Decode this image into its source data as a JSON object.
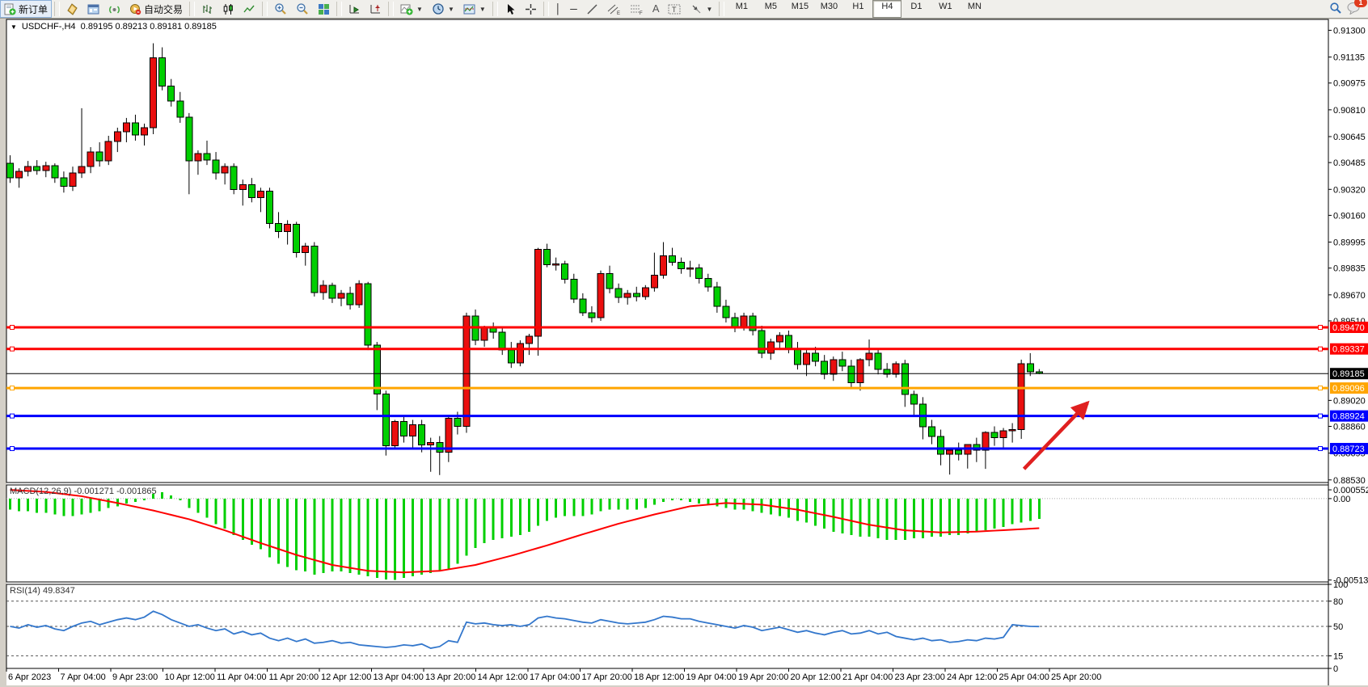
{
  "toolbar": {
    "new_order_label": "新订单",
    "auto_trading_label": "自动交易",
    "timeframes": [
      "M1",
      "M5",
      "M15",
      "M30",
      "H1",
      "H4",
      "D1",
      "W1",
      "MN"
    ],
    "active_timeframe": "H4",
    "notification_count": "1"
  },
  "chart_title": {
    "symbol_period": "USDCHF-,H4",
    "ohlc_text": "0.89195 0.89213 0.89181 0.89185"
  },
  "chart_data": {
    "type": "candlestick",
    "symbol": "USDCHF-",
    "period": "H4",
    "title_ohlc": {
      "open": "0.89195",
      "high": "0.89213",
      "low": "0.89181",
      "close": "0.89185"
    },
    "price_axis": {
      "visible_min": 0.88514,
      "visible_max": 0.91367,
      "ticks": [
        "0.91300",
        "0.91135",
        "0.90975",
        "0.90810",
        "0.90645",
        "0.90485",
        "0.90320",
        "0.90160",
        "0.89995",
        "0.89835",
        "0.89670",
        "0.89510",
        "0.89020",
        "0.88860",
        "0.88695",
        "0.88530"
      ]
    },
    "time_labels": [
      "6 Apr 2023",
      "7 Apr 04:00",
      "9 Apr 23:00",
      "10 Apr 12:00",
      "11 Apr 04:00",
      "11 Apr 20:00",
      "12 Apr 12:00",
      "13 Apr 04:00",
      "13 Apr 20:00",
      "14 Apr 12:00",
      "17 Apr 04:00",
      "17 Apr 20:00",
      "18 Apr 12:00",
      "19 Apr 04:00",
      "19 Apr 20:00",
      "20 Apr 12:00",
      "21 Apr 04:00",
      "23 Apr 23:00",
      "24 Apr 12:00",
      "25 Apr 04:00",
      "25 Apr 20:00"
    ],
    "candles": [
      [
        0.9048,
        0.9053,
        0.9036,
        0.9039
      ],
      [
        0.9039,
        0.9045,
        0.9033,
        0.9043
      ],
      [
        0.9043,
        0.90495,
        0.904,
        0.9046
      ],
      [
        0.9046,
        0.905,
        0.9041,
        0.90435
      ],
      [
        0.90435,
        0.9049,
        0.90395,
        0.90465
      ],
      [
        0.90465,
        0.9048,
        0.9036,
        0.9039
      ],
      [
        0.9039,
        0.9043,
        0.903,
        0.9034
      ],
      [
        0.9034,
        0.9046,
        0.9031,
        0.9042
      ],
      [
        0.9042,
        0.9082,
        0.9039,
        0.9046
      ],
      [
        0.9046,
        0.9058,
        0.9042,
        0.9055
      ],
      [
        0.9055,
        0.9061,
        0.9046,
        0.90495
      ],
      [
        0.90495,
        0.9065,
        0.9047,
        0.90615
      ],
      [
        0.90615,
        0.907,
        0.9055,
        0.90675
      ],
      [
        0.90675,
        0.9076,
        0.9061,
        0.9073
      ],
      [
        0.9073,
        0.9078,
        0.9062,
        0.90655
      ],
      [
        0.90655,
        0.90725,
        0.9059,
        0.907
      ],
      [
        0.907,
        0.9122,
        0.9066,
        0.9113
      ],
      [
        0.9113,
        0.91195,
        0.9093,
        0.90955
      ],
      [
        0.90955,
        0.91,
        0.9083,
        0.90865
      ],
      [
        0.90865,
        0.9092,
        0.9073,
        0.90765
      ],
      [
        0.90765,
        0.9079,
        0.9029,
        0.90495
      ],
      [
        0.90495,
        0.9056,
        0.9041,
        0.9054
      ],
      [
        0.9054,
        0.9062,
        0.9047,
        0.905
      ],
      [
        0.905,
        0.9055,
        0.9038,
        0.9042
      ],
      [
        0.9042,
        0.9048,
        0.9035,
        0.9046
      ],
      [
        0.9046,
        0.9048,
        0.9029,
        0.9032
      ],
      [
        0.9032,
        0.9038,
        0.9022,
        0.9035
      ],
      [
        0.9035,
        0.9039,
        0.9024,
        0.9027
      ],
      [
        0.9027,
        0.9033,
        0.9018,
        0.9031
      ],
      [
        0.9031,
        0.9033,
        0.9008,
        0.9011
      ],
      [
        0.9011,
        0.9018,
        0.9002,
        0.9006
      ],
      [
        0.9006,
        0.9013,
        0.8998,
        0.90105
      ],
      [
        0.90105,
        0.9012,
        0.899,
        0.8993
      ],
      [
        0.8993,
        0.8999,
        0.8985,
        0.8997
      ],
      [
        0.8997,
        0.89995,
        0.8966,
        0.89685
      ],
      [
        0.89685,
        0.8976,
        0.8964,
        0.8973
      ],
      [
        0.8973,
        0.89745,
        0.8962,
        0.8965
      ],
      [
        0.8965,
        0.897,
        0.896,
        0.8968
      ],
      [
        0.8968,
        0.8972,
        0.8958,
        0.8961
      ],
      [
        0.8961,
        0.8976,
        0.8959,
        0.8974
      ],
      [
        0.8974,
        0.8975,
        0.8933,
        0.8936
      ],
      [
        0.8936,
        0.8938,
        0.8896,
        0.8906
      ],
      [
        0.8906,
        0.8908,
        0.8868,
        0.8874
      ],
      [
        0.8874,
        0.889,
        0.8872,
        0.8889
      ],
      [
        0.8889,
        0.8892,
        0.8876,
        0.888
      ],
      [
        0.888,
        0.889,
        0.8873,
        0.8887
      ],
      [
        0.8887,
        0.889,
        0.887,
        0.88745
      ],
      [
        0.88745,
        0.8879,
        0.8858,
        0.8876
      ],
      [
        0.8876,
        0.888,
        0.8856,
        0.887
      ],
      [
        0.887,
        0.8893,
        0.8864,
        0.8891
      ],
      [
        0.8891,
        0.8895,
        0.8881,
        0.8886
      ],
      [
        0.8886,
        0.8956,
        0.8882,
        0.8954
      ],
      [
        0.8954,
        0.8958,
        0.8936,
        0.8939
      ],
      [
        0.8939,
        0.8948,
        0.8935,
        0.8947
      ],
      [
        0.8947,
        0.895,
        0.894,
        0.8944
      ],
      [
        0.8944,
        0.8947,
        0.893,
        0.8933
      ],
      [
        0.8933,
        0.8938,
        0.8922,
        0.8925
      ],
      [
        0.8925,
        0.8939,
        0.8923,
        0.8937
      ],
      [
        0.8937,
        0.8943,
        0.893,
        0.89415
      ],
      [
        0.89415,
        0.8996,
        0.89295,
        0.8995
      ],
      [
        0.8995,
        0.89985,
        0.8984,
        0.89855
      ],
      [
        0.89855,
        0.899,
        0.8982,
        0.8986
      ],
      [
        0.8986,
        0.8988,
        0.8974,
        0.89765
      ],
      [
        0.89765,
        0.898,
        0.8962,
        0.89645
      ],
      [
        0.89645,
        0.8968,
        0.8954,
        0.8956
      ],
      [
        0.8956,
        0.896,
        0.895,
        0.8953
      ],
      [
        0.8953,
        0.8982,
        0.8951,
        0.898
      ],
      [
        0.898,
        0.8985,
        0.8968,
        0.8971
      ],
      [
        0.8971,
        0.8974,
        0.8962,
        0.89655
      ],
      [
        0.89655,
        0.897,
        0.8961,
        0.8968
      ],
      [
        0.8968,
        0.8972,
        0.8963,
        0.8966
      ],
      [
        0.8966,
        0.8973,
        0.8964,
        0.89715
      ],
      [
        0.89715,
        0.8993,
        0.8969,
        0.8979
      ],
      [
        0.8979,
        0.89995,
        0.8977,
        0.8991
      ],
      [
        0.8991,
        0.8996,
        0.8985,
        0.8987
      ],
      [
        0.8987,
        0.899,
        0.898,
        0.8983
      ],
      [
        0.8983,
        0.8988,
        0.8978,
        0.89835
      ],
      [
        0.89835,
        0.8986,
        0.8974,
        0.8977
      ],
      [
        0.8977,
        0.898,
        0.8969,
        0.8972
      ],
      [
        0.8972,
        0.8975,
        0.8956,
        0.896
      ],
      [
        0.896,
        0.8964,
        0.895,
        0.8953
      ],
      [
        0.8953,
        0.8956,
        0.8944,
        0.8947
      ],
      [
        0.8947,
        0.8956,
        0.8945,
        0.8954
      ],
      [
        0.8954,
        0.8956,
        0.8942,
        0.8945
      ],
      [
        0.8945,
        0.8948,
        0.8928,
        0.8931
      ],
      [
        0.8931,
        0.894,
        0.8927,
        0.8938
      ],
      [
        0.8938,
        0.8944,
        0.8933,
        0.8942
      ],
      [
        0.8942,
        0.8945,
        0.8931,
        0.8934
      ],
      [
        0.8934,
        0.8938,
        0.8921,
        0.8924
      ],
      [
        0.8924,
        0.8933,
        0.8917,
        0.8931
      ],
      [
        0.8931,
        0.8935,
        0.8923,
        0.8926
      ],
      [
        0.8926,
        0.893,
        0.8915,
        0.8918
      ],
      [
        0.8918,
        0.8929,
        0.8914,
        0.8927
      ],
      [
        0.8927,
        0.8932,
        0.892,
        0.8923
      ],
      [
        0.8923,
        0.8927,
        0.891,
        0.8913
      ],
      [
        0.8913,
        0.8928,
        0.8908,
        0.8927
      ],
      [
        0.8927,
        0.89395,
        0.8923,
        0.8931
      ],
      [
        0.8931,
        0.8934,
        0.8918,
        0.8921
      ],
      [
        0.8921,
        0.8925,
        0.8916,
        0.89181
      ],
      [
        0.89181,
        0.8926,
        0.8916,
        0.89246
      ],
      [
        0.89246,
        0.8927,
        0.8898,
        0.89057
      ],
      [
        0.89057,
        0.8908,
        0.8892,
        0.88997
      ],
      [
        0.88997,
        0.8904,
        0.8878,
        0.88858
      ],
      [
        0.88858,
        0.889,
        0.8875,
        0.88798
      ],
      [
        0.88798,
        0.8884,
        0.8862,
        0.88688
      ],
      [
        0.88688,
        0.8873,
        0.88563,
        0.88712
      ],
      [
        0.88712,
        0.8876,
        0.8865,
        0.88688
      ],
      [
        0.88688,
        0.8875,
        0.886,
        0.88748
      ],
      [
        0.88748,
        0.8879,
        0.8864,
        0.88712
      ],
      [
        0.88712,
        0.8883,
        0.88598,
        0.88823
      ],
      [
        0.88823,
        0.8886,
        0.8874,
        0.8879
      ],
      [
        0.8879,
        0.8885,
        0.8872,
        0.88833
      ],
      [
        0.88833,
        0.8888,
        0.8876,
        0.8884
      ],
      [
        0.8884,
        0.89271,
        0.88783,
        0.89246
      ],
      [
        0.89246,
        0.89311,
        0.8917,
        0.89195
      ],
      [
        0.89195,
        0.89213,
        0.89181,
        0.89185
      ]
    ],
    "hlines": [
      {
        "price": 0.8947,
        "label": "0.89470",
        "color": "#fe0000",
        "width": 3
      },
      {
        "price": 0.89337,
        "label": "0.89337",
        "color": "#fe0000",
        "width": 3
      },
      {
        "price": 0.89096,
        "label": "0.89096",
        "color": "#ffa500",
        "width": 3
      },
      {
        "price": 0.88924,
        "label": "0.88924",
        "color": "#0000fe",
        "width": 3
      },
      {
        "price": 0.88723,
        "label": "0.88723",
        "color": "#0000fe",
        "width": 3
      }
    ],
    "current_price": {
      "value": 0.89185,
      "label": "0.89185",
      "line_color": "#000000",
      "badge_color": "#000000"
    },
    "arrow_annotation": {
      "from_bar": 113.3,
      "from_price": 0.88598,
      "to_bar": 120.4,
      "to_price": 0.89005,
      "color": "#e02020"
    },
    "macd": {
      "label": "MACD(12,26,9)",
      "values_text": "-0.001271 -0.001865",
      "range": {
        "min": -0.00525,
        "max": 0.00086
      },
      "axis_labels": [
        {
          "text": "0.000552",
          "value": 0.000552
        },
        {
          "text": "0.00",
          "value": 0.0
        },
        {
          "text": "-0.00513",
          "value": -0.00513
        }
      ],
      "hist_color": "#00cf00",
      "signal_color": "#fe0000",
      "hist": [
        -0.0007,
        -0.0008,
        -0.0008,
        -0.0009,
        -0.0009,
        -0.001,
        -0.0011,
        -0.0011,
        -0.001,
        -0.0009,
        -0.0008,
        -0.0006,
        -0.0005,
        -0.0003,
        -0.0002,
        -0.0001,
        0.0003,
        0.0004,
        0.0002,
        -0.0001,
        -0.0006,
        -0.0009,
        -0.0012,
        -0.0016,
        -0.0019,
        -0.0023,
        -0.0026,
        -0.0029,
        -0.0032,
        -0.0037,
        -0.0041,
        -0.0043,
        -0.0045,
        -0.0046,
        -0.0048,
        -0.0047,
        -0.0046,
        -0.0046,
        -0.0047,
        -0.0048,
        -0.0049,
        -0.005,
        -0.0051,
        -0.00513,
        -0.005,
        -0.0049,
        -0.0048,
        -0.0047,
        -0.0046,
        -0.0044,
        -0.0041,
        -0.0036,
        -0.0031,
        -0.0028,
        -0.0026,
        -0.0025,
        -0.0024,
        -0.0023,
        -0.0021,
        -0.0017,
        -0.0014,
        -0.0012,
        -0.0011,
        -0.0011,
        -0.0011,
        -0.001,
        -0.0008,
        -0.0007,
        -0.0007,
        -0.0007,
        -0.0007,
        -0.0006,
        -0.0004,
        -0.0002,
        -0.0001,
        -0.0001,
        -0.0002,
        -0.0003,
        -0.0004,
        -0.0005,
        -0.0006,
        -0.0007,
        -0.0007,
        -0.0008,
        -0.0009,
        -0.001,
        -0.0011,
        -0.0012,
        -0.0014,
        -0.0015,
        -0.0017,
        -0.0019,
        -0.0021,
        -0.0022,
        -0.0023,
        -0.0024,
        -0.0024,
        -0.0025,
        -0.0026,
        -0.0026,
        -0.0026,
        -0.0025,
        -0.0025,
        -0.0024,
        -0.0024,
        -0.0023,
        -0.0023,
        -0.0022,
        -0.0021,
        -0.002,
        -0.0019,
        -0.0018,
        -0.0016,
        -0.0015,
        -0.0014,
        -0.001271
      ],
      "signal_points": [
        [
          0,
          0.00055
        ],
        [
          4,
          0.00042
        ],
        [
          8,
          0.00015
        ],
        [
          12,
          -0.00028
        ],
        [
          16,
          -0.00075
        ],
        [
          20,
          -0.0013
        ],
        [
          24,
          -0.002
        ],
        [
          28,
          -0.0028
        ],
        [
          32,
          -0.00355
        ],
        [
          36,
          -0.00418
        ],
        [
          40,
          -0.00455
        ],
        [
          44,
          -0.00465
        ],
        [
          48,
          -0.00455
        ],
        [
          52,
          -0.00418
        ],
        [
          56,
          -0.0036
        ],
        [
          60,
          -0.00295
        ],
        [
          64,
          -0.00225
        ],
        [
          68,
          -0.00158
        ],
        [
          72,
          -0.001
        ],
        [
          76,
          -0.00048
        ],
        [
          80,
          -0.00028
        ],
        [
          84,
          -0.00038
        ],
        [
          88,
          -0.0007
        ],
        [
          92,
          -0.00115
        ],
        [
          96,
          -0.00165
        ],
        [
          100,
          -0.002
        ],
        [
          104,
          -0.00213
        ],
        [
          108,
          -0.00208
        ],
        [
          112,
          -0.00196
        ],
        [
          115,
          -0.001865
        ]
      ]
    },
    "rsi": {
      "label": "RSI(14)",
      "value_text": "49.8347",
      "range": {
        "min": 0,
        "max": 100
      },
      "line_color": "#3377cc",
      "levels": [
        {
          "text": "100",
          "value": 100,
          "dashed": false
        },
        {
          "text": "80",
          "value": 80,
          "dashed": true
        },
        {
          "text": "50",
          "value": 50,
          "dashed": true
        },
        {
          "text": "15",
          "value": 15,
          "dashed": true
        },
        {
          "text": "0",
          "value": 0,
          "dashed": false
        }
      ],
      "values": [
        50,
        48,
        52,
        49,
        51,
        47,
        45,
        50,
        54,
        56,
        52,
        55,
        58,
        60,
        58,
        61,
        68,
        64,
        58,
        54,
        50,
        52,
        48,
        45,
        47,
        41,
        44,
        40,
        42,
        36,
        33,
        36,
        32,
        35,
        30,
        31,
        33,
        30,
        31,
        28,
        27,
        26,
        25,
        26,
        28,
        27,
        29,
        24,
        26,
        33,
        31,
        55,
        53,
        54,
        52,
        51,
        52,
        50,
        52,
        60,
        62,
        60,
        59,
        57,
        55,
        54,
        58,
        56,
        54,
        53,
        54,
        55,
        58,
        62,
        61,
        59,
        59,
        56,
        54,
        52,
        50,
        48,
        51,
        49,
        45,
        47,
        49,
        46,
        43,
        45,
        42,
        40,
        43,
        45,
        41,
        42,
        45,
        41,
        43,
        38,
        36,
        34,
        36,
        33,
        34,
        31,
        32,
        34,
        33,
        36,
        35,
        37,
        52,
        51,
        50,
        49.8
      ]
    },
    "colors": {
      "bull": "#ea0f0f",
      "bear": "#00cf00",
      "wick": "#000000",
      "background": "#ffffff",
      "axis_text": "#000000"
    }
  }
}
